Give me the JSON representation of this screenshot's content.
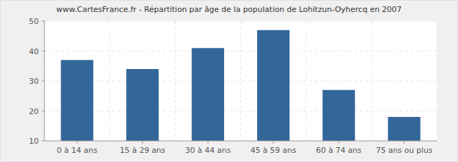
{
  "chart_data": {
    "type": "bar",
    "title": "www.CartesFrance.fr - Répartition par âge de la population de Lohitzun-Oyhercq en 2007",
    "categories": [
      "0 à 14 ans",
      "15 à 29 ans",
      "30 à 44 ans",
      "45 à 59 ans",
      "60 à 74 ans",
      "75 ans ou plus"
    ],
    "values": [
      37,
      34,
      41,
      47,
      27,
      18
    ],
    "color": "#336699",
    "ylim": [
      10,
      50
    ],
    "yticks": [
      10,
      20,
      30,
      40,
      50
    ],
    "grid": true
  }
}
